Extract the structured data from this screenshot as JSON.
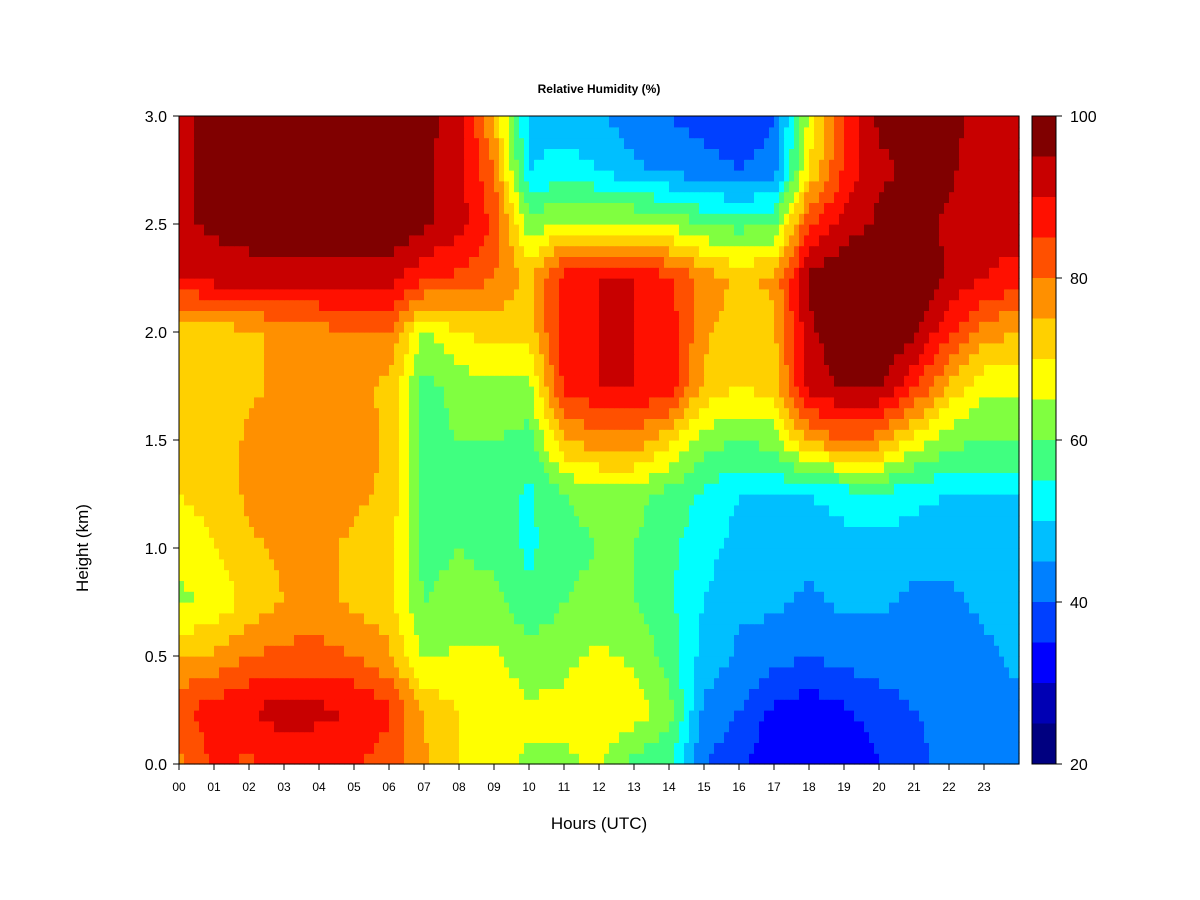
{
  "chart_data": {
    "type": "heatmap",
    "title": "Relative Humidity (%)",
    "xlabel": "Hours (UTC)",
    "ylabel": "Height (km)",
    "x_ticks": [
      "00",
      "01",
      "02",
      "03",
      "04",
      "05",
      "06",
      "07",
      "08",
      "09",
      "10",
      "11",
      "12",
      "13",
      "14",
      "15",
      "16",
      "17",
      "18",
      "19",
      "20",
      "21",
      "22",
      "23"
    ],
    "y_ticks": [
      "0.0",
      "0.5",
      "1.0",
      "1.5",
      "2.0",
      "2.5",
      "3.0"
    ],
    "xlim": [
      0,
      24
    ],
    "ylim": [
      0,
      3
    ],
    "colorbar": {
      "ticks": [
        "20",
        "40",
        "60",
        "80",
        "100"
      ],
      "range": [
        20,
        100
      ],
      "levels": [
        20,
        25,
        30,
        35,
        40,
        45,
        50,
        55,
        60,
        65,
        70,
        75,
        80,
        85,
        90,
        95,
        100
      ],
      "colors": [
        "#000080",
        "#0000b4",
        "#0000ff",
        "#0040ff",
        "#0080ff",
        "#00bfff",
        "#00ffff",
        "#40ff80",
        "#80ff40",
        "#ffff00",
        "#ffd000",
        "#ff9000",
        "#ff5000",
        "#ff1000",
        "#c80000",
        "#800000"
      ]
    },
    "heights_km": [
      0.0,
      0.25,
      0.5,
      0.75,
      1.0,
      1.25,
      1.5,
      1.75,
      2.0,
      2.25,
      2.5,
      2.75,
      3.0
    ],
    "hours": [
      0,
      1,
      2,
      3,
      4,
      5,
      6,
      7,
      8,
      9,
      10,
      11,
      12,
      13,
      14,
      15,
      16,
      17,
      18,
      19,
      20,
      21,
      22,
      23,
      24
    ],
    "values_rh": [
      [
        78,
        86,
        84,
        88,
        87,
        86,
        82,
        76,
        70,
        67,
        64,
        64,
        66,
        58,
        56,
        40,
        36,
        30,
        30,
        30,
        35,
        38,
        42,
        44,
        44
      ],
      [
        84,
        88,
        90,
        92,
        91,
        90,
        86,
        74,
        70,
        68,
        66,
        66,
        70,
        68,
        62,
        44,
        40,
        34,
        32,
        34,
        38,
        40,
        42,
        44,
        44
      ],
      [
        74,
        76,
        80,
        82,
        82,
        80,
        76,
        64,
        66,
        66,
        62,
        64,
        66,
        64,
        58,
        48,
        44,
        42,
        40,
        42,
        42,
        42,
        42,
        44,
        46
      ],
      [
        64,
        66,
        72,
        75,
        76,
        74,
        72,
        60,
        62,
        62,
        56,
        60,
        62,
        60,
        56,
        50,
        46,
        46,
        44,
        46,
        46,
        44,
        44,
        46,
        46
      ],
      [
        66,
        70,
        74,
        76,
        76,
        74,
        72,
        58,
        60,
        58,
        54,
        58,
        60,
        60,
        56,
        52,
        48,
        48,
        46,
        48,
        48,
        46,
        46,
        48,
        48
      ],
      [
        70,
        72,
        76,
        78,
        78,
        76,
        74,
        58,
        60,
        58,
        54,
        60,
        62,
        62,
        58,
        54,
        50,
        50,
        50,
        52,
        54,
        52,
        50,
        50,
        50
      ],
      [
        72,
        72,
        76,
        78,
        78,
        78,
        74,
        58,
        60,
        60,
        58,
        74,
        78,
        78,
        72,
        62,
        60,
        62,
        76,
        80,
        78,
        68,
        62,
        60,
        60
      ],
      [
        72,
        72,
        74,
        76,
        76,
        76,
        74,
        58,
        62,
        64,
        64,
        86,
        90,
        90,
        88,
        74,
        70,
        72,
        92,
        96,
        96,
        86,
        74,
        66,
        66
      ],
      [
        70,
        72,
        74,
        76,
        78,
        80,
        80,
        64,
        70,
        72,
        72,
        88,
        90,
        90,
        88,
        76,
        72,
        74,
        94,
        98,
        100,
        96,
        86,
        78,
        74
      ],
      [
        90,
        92,
        92,
        92,
        92,
        92,
        92,
        86,
        84,
        80,
        74,
        88,
        90,
        90,
        86,
        78,
        74,
        76,
        96,
        100,
        100,
        100,
        94,
        90,
        88
      ],
      [
        94,
        96,
        98,
        100,
        100,
        100,
        100,
        96,
        92,
        84,
        62,
        66,
        66,
        66,
        64,
        60,
        58,
        60,
        84,
        92,
        96,
        98,
        94,
        92,
        92
      ],
      [
        94,
        96,
        98,
        100,
        100,
        100,
        100,
        96,
        92,
        80,
        50,
        52,
        50,
        46,
        44,
        42,
        40,
        42,
        70,
        86,
        94,
        96,
        96,
        92,
        92
      ],
      [
        94,
        96,
        98,
        100,
        100,
        100,
        100,
        96,
        94,
        74,
        48,
        48,
        46,
        42,
        40,
        38,
        36,
        40,
        66,
        86,
        96,
        96,
        96,
        94,
        92
      ]
    ]
  }
}
